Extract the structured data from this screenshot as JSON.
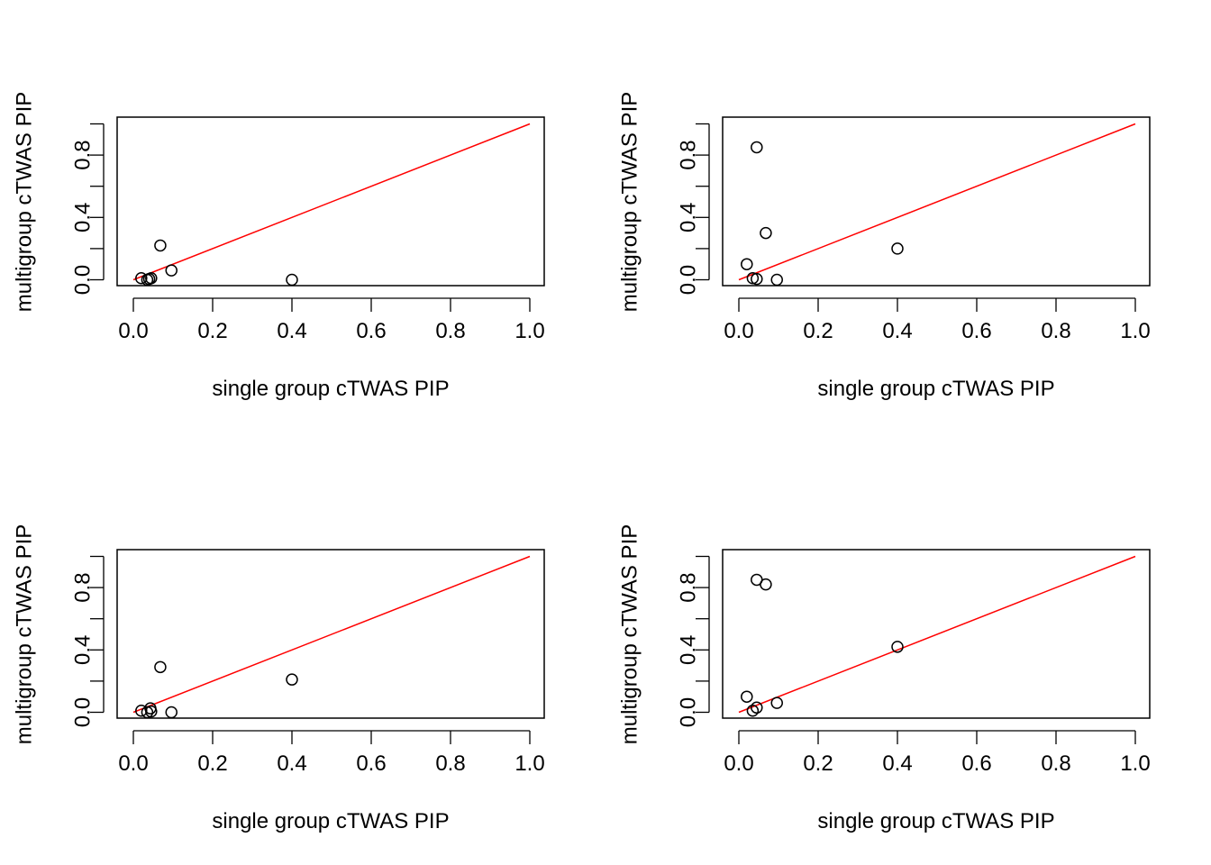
{
  "chart_data": [
    {
      "type": "scatter",
      "xlabel": "single group cTWAS PIP",
      "ylabel": "multigroup cTWAS PIP",
      "xlim": [
        0,
        1
      ],
      "ylim": [
        0,
        1
      ],
      "x_ticks": [
        "0.0",
        "0.2",
        "0.4",
        "0.6",
        "0.8",
        "1.0"
      ],
      "y_ticks": [
        "0.0",
        "0.4",
        "0.8"
      ],
      "reference_line": {
        "x": [
          0,
          1
        ],
        "y": [
          0,
          1
        ],
        "color": "#ff0000"
      },
      "points": [
        {
          "x": 0.02,
          "y": 0.01
        },
        {
          "x": 0.035,
          "y": 0.0
        },
        {
          "x": 0.04,
          "y": 0.005
        },
        {
          "x": 0.045,
          "y": 0.01
        },
        {
          "x": 0.068,
          "y": 0.22
        },
        {
          "x": 0.096,
          "y": 0.06
        },
        {
          "x": 0.4,
          "y": 0.0
        }
      ]
    },
    {
      "type": "scatter",
      "xlabel": "single group cTWAS PIP",
      "ylabel": "multigroup cTWAS PIP",
      "xlim": [
        0,
        1
      ],
      "ylim": [
        0,
        1
      ],
      "x_ticks": [
        "0.0",
        "0.2",
        "0.4",
        "0.6",
        "0.8",
        "1.0"
      ],
      "y_ticks": [
        "0.0",
        "0.4",
        "0.8"
      ],
      "reference_line": {
        "x": [
          0,
          1
        ],
        "y": [
          0,
          1
        ],
        "color": "#ff0000"
      },
      "points": [
        {
          "x": 0.02,
          "y": 0.1
        },
        {
          "x": 0.035,
          "y": 0.01
        },
        {
          "x": 0.045,
          "y": 0.005
        },
        {
          "x": 0.045,
          "y": 0.85
        },
        {
          "x": 0.068,
          "y": 0.3
        },
        {
          "x": 0.096,
          "y": 0.0
        },
        {
          "x": 0.4,
          "y": 0.2
        }
      ]
    },
    {
      "type": "scatter",
      "xlabel": "single group cTWAS PIP",
      "ylabel": "multigroup cTWAS PIP",
      "xlim": [
        0,
        1
      ],
      "ylim": [
        0,
        1
      ],
      "x_ticks": [
        "0.0",
        "0.2",
        "0.4",
        "0.6",
        "0.8",
        "1.0"
      ],
      "y_ticks": [
        "0.0",
        "0.4",
        "0.8"
      ],
      "reference_line": {
        "x": [
          0,
          1
        ],
        "y": [
          0,
          1
        ],
        "color": "#ff0000"
      },
      "points": [
        {
          "x": 0.02,
          "y": 0.01
        },
        {
          "x": 0.035,
          "y": 0.0
        },
        {
          "x": 0.043,
          "y": 0.025
        },
        {
          "x": 0.045,
          "y": 0.005
        },
        {
          "x": 0.068,
          "y": 0.29
        },
        {
          "x": 0.096,
          "y": 0.0
        },
        {
          "x": 0.4,
          "y": 0.21
        }
      ]
    },
    {
      "type": "scatter",
      "xlabel": "single group cTWAS PIP",
      "ylabel": "multigroup cTWAS PIP",
      "xlim": [
        0,
        1
      ],
      "ylim": [
        0,
        1
      ],
      "x_ticks": [
        "0.0",
        "0.2",
        "0.4",
        "0.6",
        "0.8",
        "1.0"
      ],
      "y_ticks": [
        "0.0",
        "0.4",
        "0.8"
      ],
      "reference_line": {
        "x": [
          0,
          1
        ],
        "y": [
          0,
          1
        ],
        "color": "#ff0000"
      },
      "points": [
        {
          "x": 0.02,
          "y": 0.1
        },
        {
          "x": 0.035,
          "y": 0.01
        },
        {
          "x": 0.045,
          "y": 0.03
        },
        {
          "x": 0.045,
          "y": 0.85
        },
        {
          "x": 0.068,
          "y": 0.82
        },
        {
          "x": 0.096,
          "y": 0.06
        },
        {
          "x": 0.4,
          "y": 0.42
        }
      ]
    }
  ]
}
